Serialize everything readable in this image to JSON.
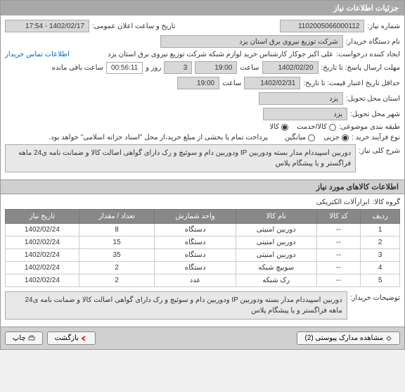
{
  "panel_title": "جزئیات اطلاعات نیاز",
  "labels": {
    "req_no": "شماره نیاز:",
    "announce": "تاریخ و ساعت اعلان عمومی:",
    "buyer": "نام دستگاه خریدار:",
    "creator": "ایجاد کننده درخواست:",
    "contact": "اطلاعات تماس خریدار",
    "reply_deadline": "مهلت ارسال پاسخ: تا تاریخ:",
    "hour": "ساعت",
    "day": "روز و",
    "remain": "ساعت باقی مانده",
    "price_until": "حداقل تاریخ اعتبار قیمت: تا تاریخ:",
    "req_city": "استان محل تحویل:",
    "deliver_city": "شهر محل تحویل:",
    "category": "طبقه بندی موضوعی:",
    "goods_service": "کالا/خدمت",
    "goods": "کالا",
    "buy_type": "نوع فرآیند خرید :",
    "partial": "جزیی",
    "avg": "میانگین",
    "payment_note": "پرداخت تمام یا بخشی از مبلغ خرید،از محل \"اسناد خزانه اسلامی\" خواهد بود.",
    "req_subject": "شرح کلی نیاز:",
    "goods_info": "اطلاعات کالاهای مورد نیاز",
    "goods_group": "گروه کالا:",
    "buyer_notes": "توضیحات خریدار:"
  },
  "values": {
    "req_no": "1102005066000112",
    "announce": "1402/02/17 - 17:54",
    "buyer": "شرکت توزیع نیروی برق استان یزد",
    "creator": "علی اکبر  جوکار  کارشناس خرید لوازم شبکه  شرکت توزیع نیروی برق استان یزد",
    "date1": "1402/02/20",
    "time1": "19:00",
    "days": "3",
    "countdown": "00:56:11",
    "date2": "1402/02/31",
    "time2": "19:00",
    "city1": "یزد",
    "city2": "یزد",
    "desc": "دوربین اسپیددام مدار بسته ودوربین IP ودوربین دام و سوئیچ و رک  دارای گواهی اصالت کالا و ضمانت نامه ی24 ماهه فراگستر و یا پیشگام پلاس",
    "goods_group": "ابزارآلات الکتریکی",
    "buyer_notes": "دوربین اسپیددام مدار بسته ودوربین IP ودوربین دام و سوئیچ و رک  دارای گواهی اصالت کالا و ضمانت نامه ی24 ماهه فراگستر و یا پیشگام پلاس"
  },
  "table": {
    "headers": [
      "ردیف",
      "کد کالا",
      "نام کالا",
      "واحد شمارش",
      "تعداد / مقدار",
      "تاریخ نیاز"
    ],
    "rows": [
      [
        "1",
        "--",
        "دوربین امنیتی",
        "دستگاه",
        "8",
        "1402/02/24"
      ],
      [
        "2",
        "--",
        "دوربین امنیتی",
        "دستگاه",
        "15",
        "1402/02/24"
      ],
      [
        "3",
        "--",
        "دوربین امنیتی",
        "دستگاه",
        "35",
        "1402/02/24"
      ],
      [
        "4",
        "--",
        "سوییچ شبکه",
        "دستگاه",
        "2",
        "1402/02/24"
      ],
      [
        "5",
        "--",
        "رک شبکه",
        "عدد",
        "2",
        "1402/02/24"
      ]
    ]
  },
  "buttons": {
    "attachments": "مشاهده مدارک پیوستی (2)",
    "back": "بازگشت",
    "print": "چاپ"
  }
}
